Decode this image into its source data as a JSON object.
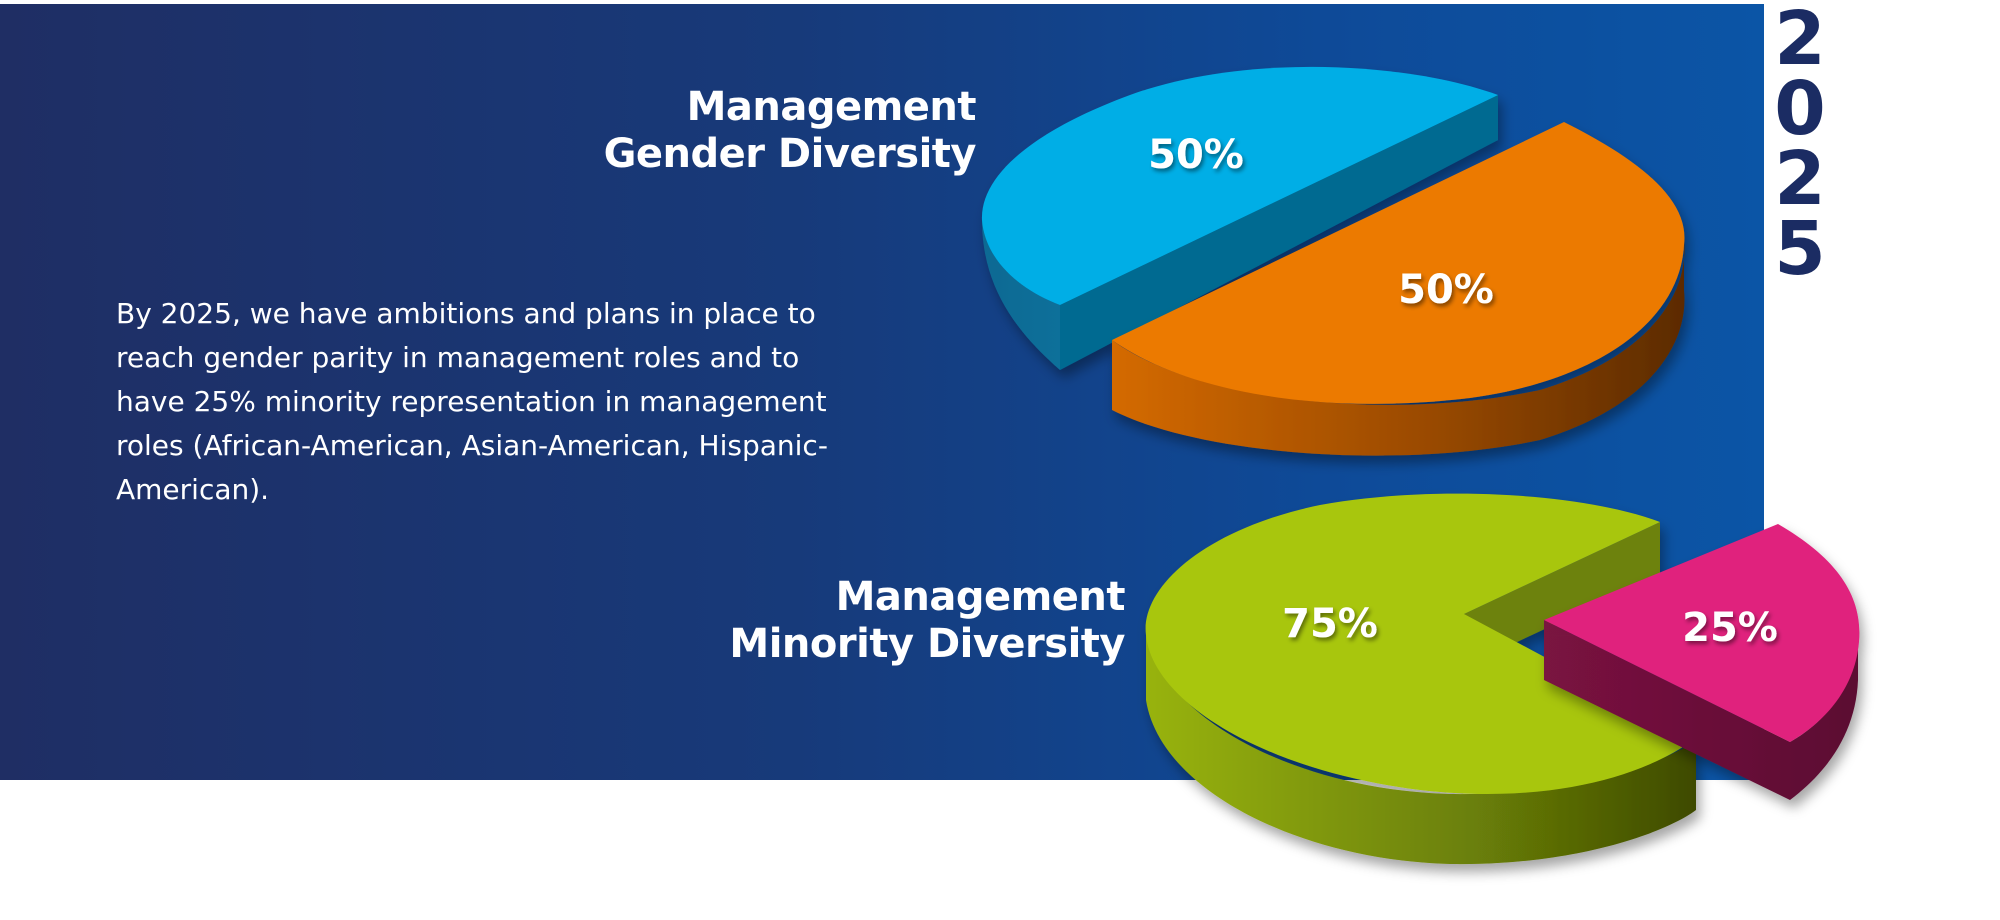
{
  "year_digits": [
    "2",
    "0",
    "2",
    "5"
  ],
  "body_text": "By 2025, we have ambitions and plans in place to reach gender parity in management roles and to have 25% minority representation in management roles (African-American, Asian-American, Hispanic-American).",
  "colors": {
    "panel": "#173a7a",
    "year_text": "#1b2c63",
    "gender_slice_1": "#00aee6",
    "gender_slice_2": "#ec7a00",
    "minority_slice_1": "#a8c60d",
    "minority_slice_2": "#e0207d"
  },
  "chart_data": [
    {
      "type": "pie",
      "title_lines": [
        "Management",
        "Gender Diversity"
      ],
      "title": "Management Gender Diversity",
      "values": [
        50,
        50
      ],
      "labels": [
        "50%",
        "50%"
      ],
      "colors": [
        "#00aee6",
        "#ec7a00"
      ]
    },
    {
      "type": "pie",
      "title_lines": [
        "Management",
        "Minority Diversity"
      ],
      "title": "Management Minority Diversity",
      "values": [
        75,
        25
      ],
      "labels": [
        "75%",
        "25%"
      ],
      "colors": [
        "#a8c60d",
        "#e0207d"
      ]
    }
  ]
}
